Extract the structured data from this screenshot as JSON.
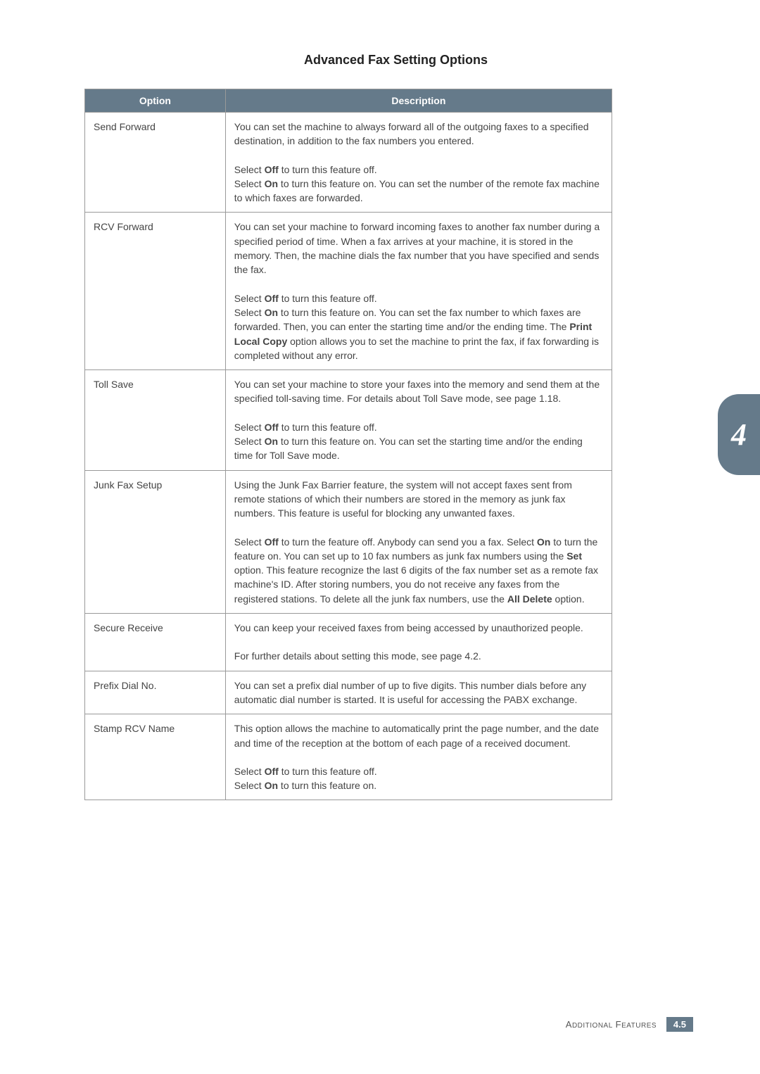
{
  "page_title": "Advanced Fax Setting Options",
  "table": {
    "header_bg": "#657a8a",
    "header_fg": "#ffffff",
    "border_color": "#999999",
    "col_option": "Option",
    "col_description": "Description",
    "rows": [
      {
        "option": "Send Forward",
        "desc1_pre": "You can set the machine to always forward all of the outgoing faxes to a specified destination, in addition to the fax numbers you entered.",
        "desc2_html": "Select <b>Off</b> to turn this feature off.<br>Select <b>On</b> to turn this feature on. You can set the number of the remote fax machine to which faxes are forwarded."
      },
      {
        "option": "RCV Forward",
        "desc1_pre": "You can set your machine to forward incoming faxes to another fax number during a specified period of time. When a fax arrives at your machine, it is stored in the memory. Then, the machine dials the fax number that you have specified and sends the fax.",
        "desc2_html": "Select <b>Off</b> to turn this feature off.<br>Select <b>On</b> to turn this feature on. You can set the fax number to which faxes are forwarded. Then, you can enter the starting time and/or the ending time. The <b>Print Local Copy</b> option allows you to set the machine to print the fax, if fax forwarding is completed without any error."
      },
      {
        "option": "Toll Save",
        "desc1_pre": "You can set your machine to store your faxes into the memory and send them at the specified toll-saving time. For details about Toll Save mode, see page 1.18.",
        "desc2_html": "Select <b>Off</b> to turn this feature off.<br>Select <b>On</b> to turn this feature on. You can set the starting time and/or the ending time for Toll Save mode."
      },
      {
        "option": "Junk Fax Setup",
        "desc1_pre": "Using the Junk Fax Barrier feature, the system will not accept faxes sent from remote stations of which their numbers are stored in the memory as junk fax numbers. This feature is useful for blocking any unwanted faxes.",
        "desc2_html": "Select <b>Off</b> to turn the feature off. Anybody can send you a fax. Select <b>On</b> to turn the feature on. You can set up to 10 fax numbers as junk fax numbers using the <b>Set</b> option. This feature recognize the last 6 digits of the fax number set as a remote fax machine's ID. After storing numbers, you do not receive any faxes from the registered stations. To delete all the junk fax numbers, use the <b>All Delete</b> option."
      },
      {
        "option": "Secure Receive",
        "desc1_pre": "You can keep your received faxes from being accessed by unauthorized people.",
        "desc2_html": "For further details about setting this mode, see page 4.2."
      },
      {
        "option": "Prefix Dial No.",
        "desc1_pre": "You can set a prefix dial number of up to five digits. This number dials before any automatic dial number is started. It is useful for accessing the PABX exchange.",
        "desc2_html": null
      },
      {
        "option": "Stamp RCV Name",
        "desc1_pre": "This option allows the machine to automatically print the page number, and the date and time of the reception at the bottom of each page of a received document.",
        "desc2_html": "Select <b>Off</b> to turn this feature off.<br>Select <b>On</b> to turn this feature on."
      }
    ]
  },
  "side_tab": {
    "label": "4",
    "bg": "#657a8a",
    "fg": "#ffffff"
  },
  "footer": {
    "section_small": "A",
    "section_rest": "DDITIONAL",
    "section2_small": "F",
    "section2_rest": "EATURES",
    "pagenum": "4.5",
    "pagenum_bg": "#657a8a"
  }
}
